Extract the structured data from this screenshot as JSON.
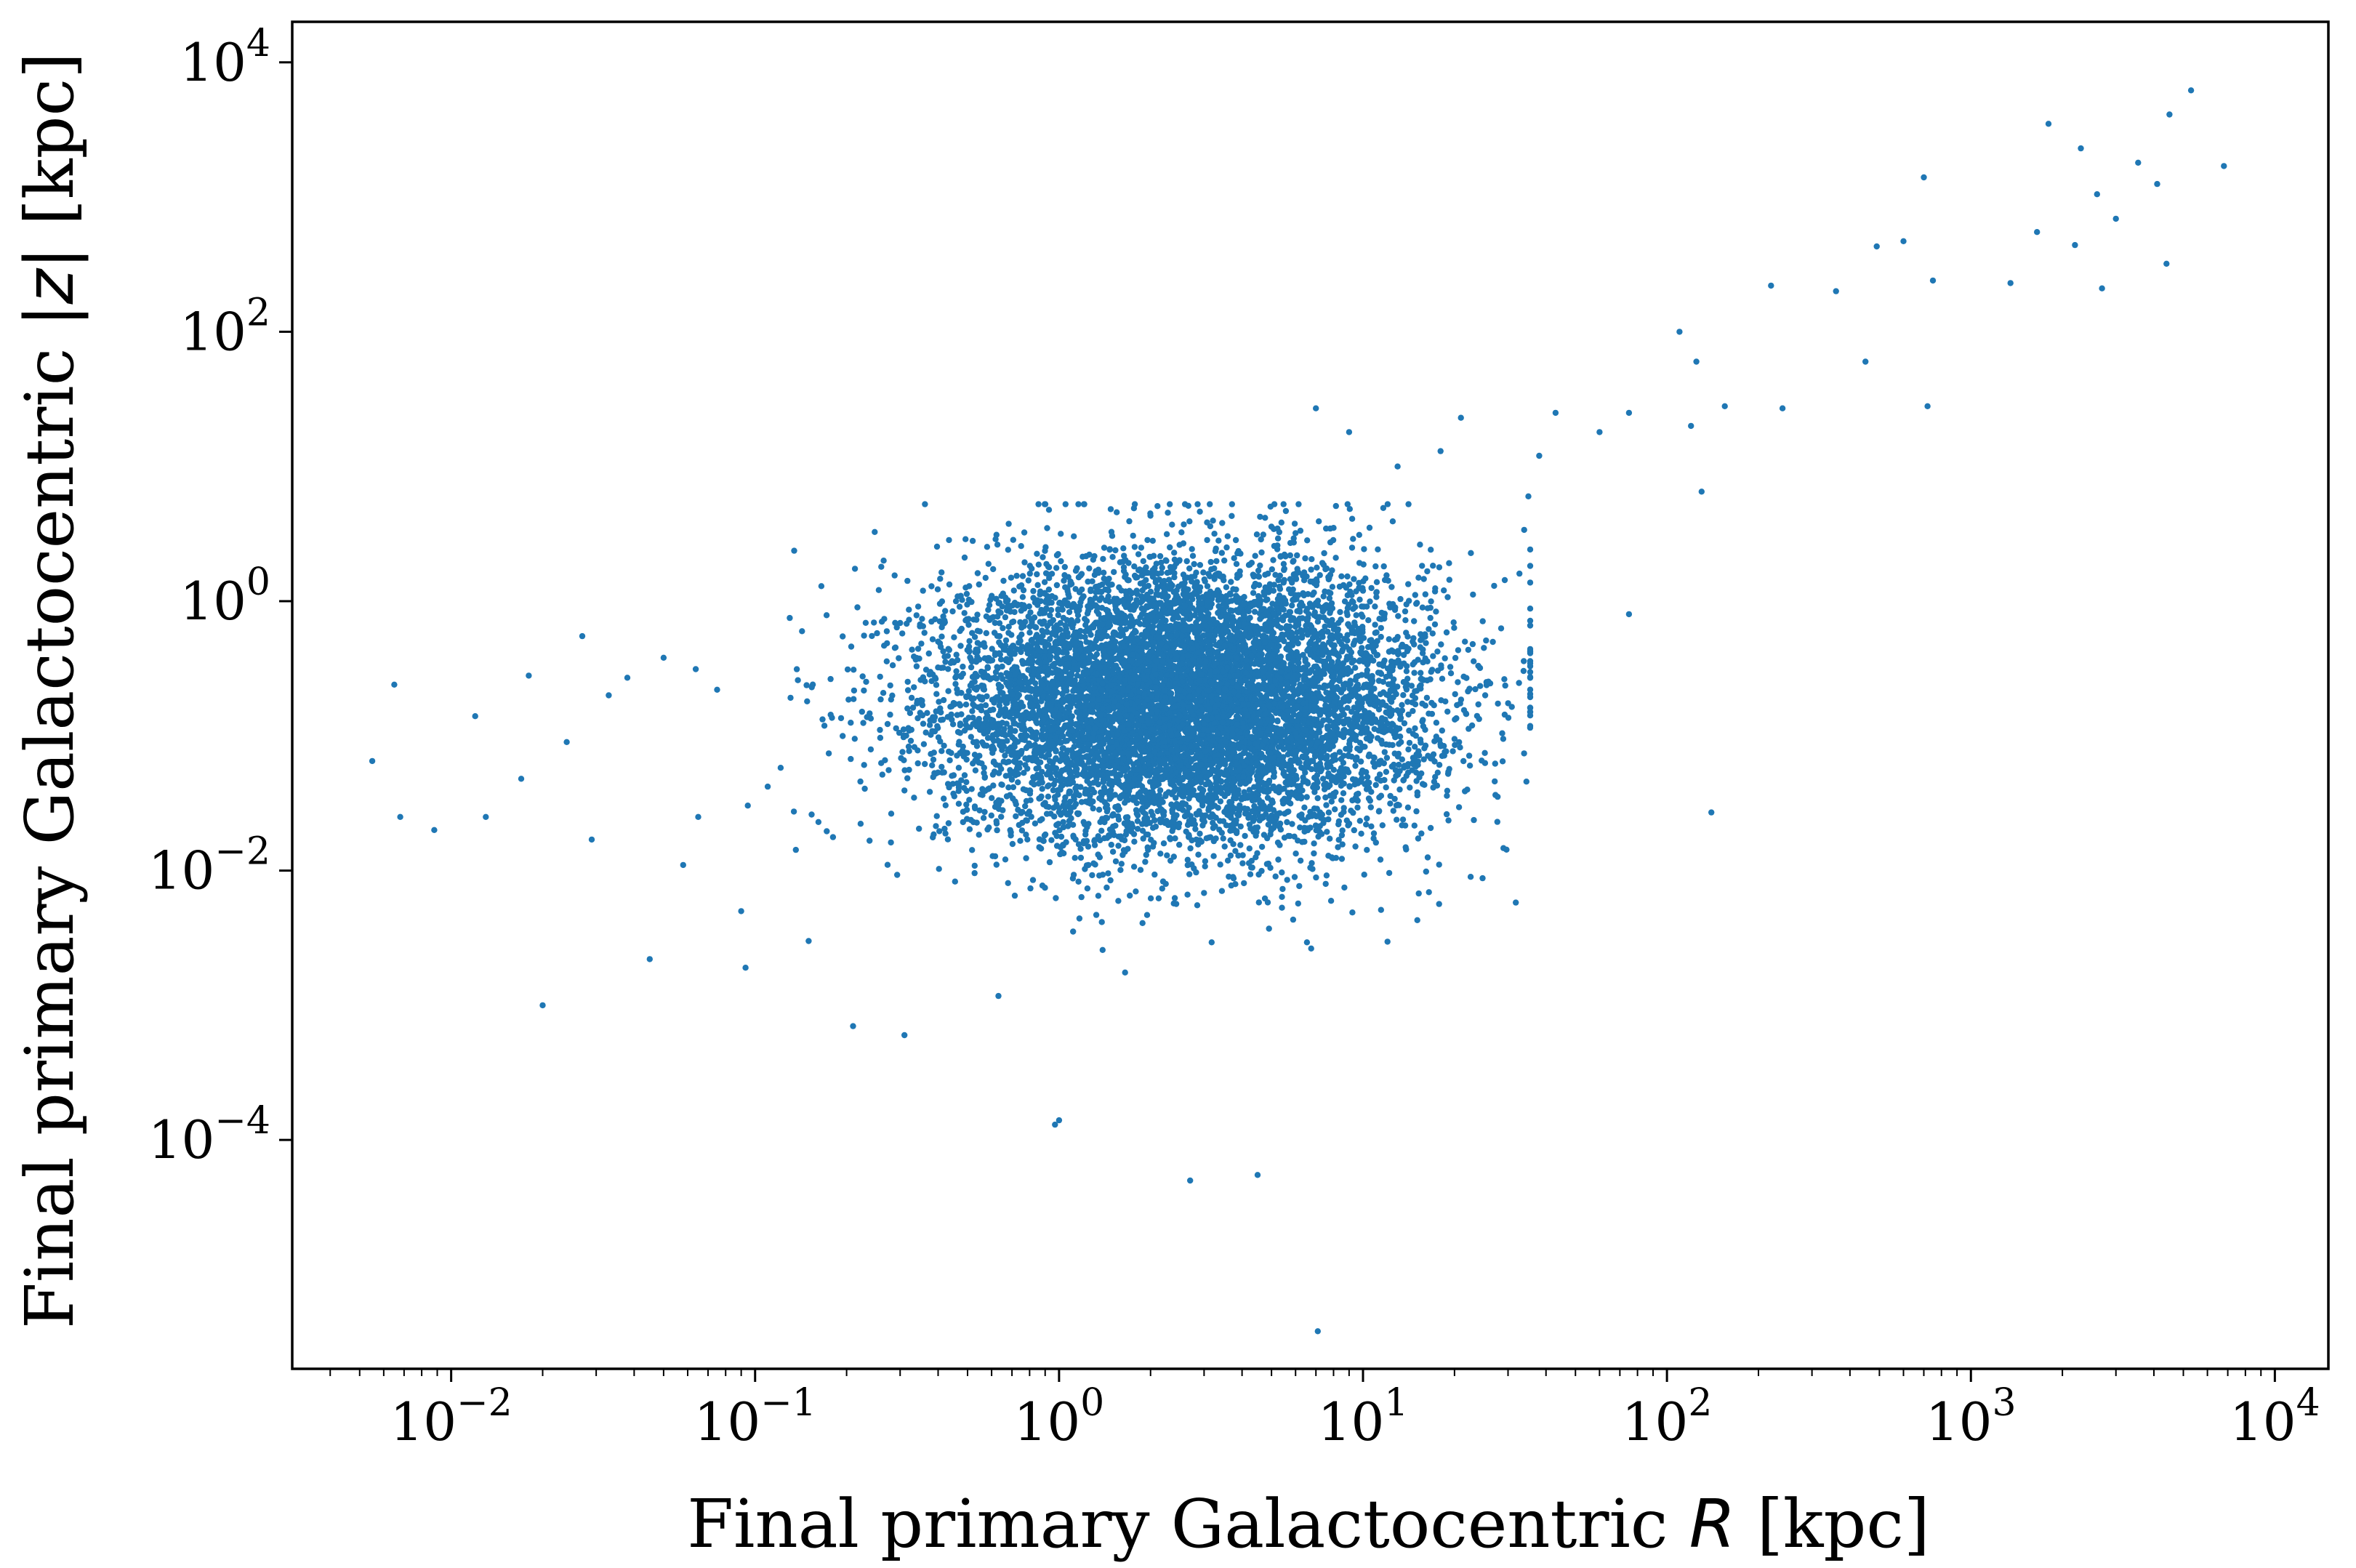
{
  "chart_data": {
    "type": "scatter",
    "xlabel": "Final primary Galactocentric R [kpc]",
    "xlabel_parts": {
      "pre": "Final primary Galactocentric ",
      "var": "R",
      "post": " [kpc]"
    },
    "ylabel": "Final primary Galactocentric |z| [kpc]",
    "ylabel_parts": {
      "pre": "Final primary Galactocentric ",
      "var": "|z|",
      "post": " [kpc]"
    },
    "xscale": "log",
    "yscale": "log",
    "xlim": [
      0.003,
      15000
    ],
    "ylim": [
      2e-06,
      20000
    ],
    "x_ticks": [
      {
        "value": 0.01,
        "base": "10",
        "exp": "−2"
      },
      {
        "value": 0.1,
        "base": "10",
        "exp": "−1"
      },
      {
        "value": 1,
        "base": "10",
        "exp": "0"
      },
      {
        "value": 10,
        "base": "10",
        "exp": "1"
      },
      {
        "value": 100,
        "base": "10",
        "exp": "2"
      },
      {
        "value": 1000,
        "base": "10",
        "exp": "3"
      },
      {
        "value": 10000,
        "base": "10",
        "exp": "4"
      }
    ],
    "y_ticks": [
      {
        "value": 0.0001,
        "base": "10",
        "exp": "−4"
      },
      {
        "value": 0.01,
        "base": "10",
        "exp": "−2"
      },
      {
        "value": 1,
        "base": "10",
        "exp": "0"
      },
      {
        "value": 100,
        "base": "10",
        "exp": "2"
      },
      {
        "value": 10000,
        "base": "10",
        "exp": "4"
      }
    ],
    "grid": false,
    "marker_color": "#1f77b4",
    "series": [
      {
        "points": [
          [
            0.0055,
            0.065
          ],
          [
            0.0065,
            0.24
          ],
          [
            0.0068,
            0.025
          ],
          [
            0.0088,
            0.02
          ],
          [
            0.012,
            0.14
          ],
          [
            0.013,
            0.025
          ],
          [
            0.017,
            0.048
          ],
          [
            0.018,
            0.28
          ],
          [
            0.02,
            0.001
          ],
          [
            0.024,
            0.09
          ],
          [
            0.027,
            0.55
          ],
          [
            0.029,
            0.017
          ],
          [
            0.033,
            0.2
          ],
          [
            0.038,
            0.27
          ],
          [
            0.045,
            0.0022
          ],
          [
            0.05,
            0.38
          ],
          [
            0.058,
            0.011
          ],
          [
            0.065,
            0.025
          ],
          [
            0.075,
            0.22
          ],
          [
            0.09,
            0.005
          ],
          [
            0.093,
            0.0019
          ],
          [
            0.11,
            0.042
          ],
          [
            0.13,
            0.75
          ],
          [
            0.15,
            0.003
          ],
          [
            0.21,
            0.0007
          ],
          [
            0.26,
            1.8
          ],
          [
            0.31,
            0.0006
          ],
          [
            0.52,
            2.8
          ],
          [
            0.97,
            0.00013
          ],
          [
            1.0,
            0.00014
          ],
          [
            2.7,
            5e-05
          ],
          [
            4.5,
            5.5e-05
          ],
          [
            7.1,
            3.8e-06
          ],
          [
            7.0,
            27
          ],
          [
            8.0,
            3.5
          ],
          [
            9.0,
            18
          ],
          [
            13,
            10
          ],
          [
            18,
            13
          ],
          [
            21,
            23
          ],
          [
            27,
            1.3
          ],
          [
            35,
            6
          ],
          [
            38,
            12
          ],
          [
            43,
            25
          ],
          [
            60,
            18
          ],
          [
            75,
            0.8
          ],
          [
            75,
            25
          ],
          [
            110,
            100
          ],
          [
            120,
            20
          ],
          [
            125,
            60
          ],
          [
            130,
            6.5
          ],
          [
            140,
            0.027
          ],
          [
            155,
            28
          ],
          [
            220,
            220
          ],
          [
            240,
            27
          ],
          [
            360,
            200
          ],
          [
            450,
            60
          ],
          [
            490,
            430
          ],
          [
            600,
            470
          ],
          [
            700,
            1400
          ],
          [
            720,
            28
          ],
          [
            750,
            240
          ],
          [
            1350,
            230
          ],
          [
            1650,
            550
          ],
          [
            1800,
            3500
          ],
          [
            2200,
            440
          ],
          [
            2300,
            2300
          ],
          [
            2600,
            1050
          ],
          [
            2700,
            210
          ],
          [
            3000,
            690
          ],
          [
            3550,
            1800
          ],
          [
            4100,
            1250
          ],
          [
            4400,
            320
          ],
          [
            4500,
            4100
          ],
          [
            5300,
            6200
          ],
          [
            6800,
            1700
          ]
        ]
      }
    ]
  }
}
